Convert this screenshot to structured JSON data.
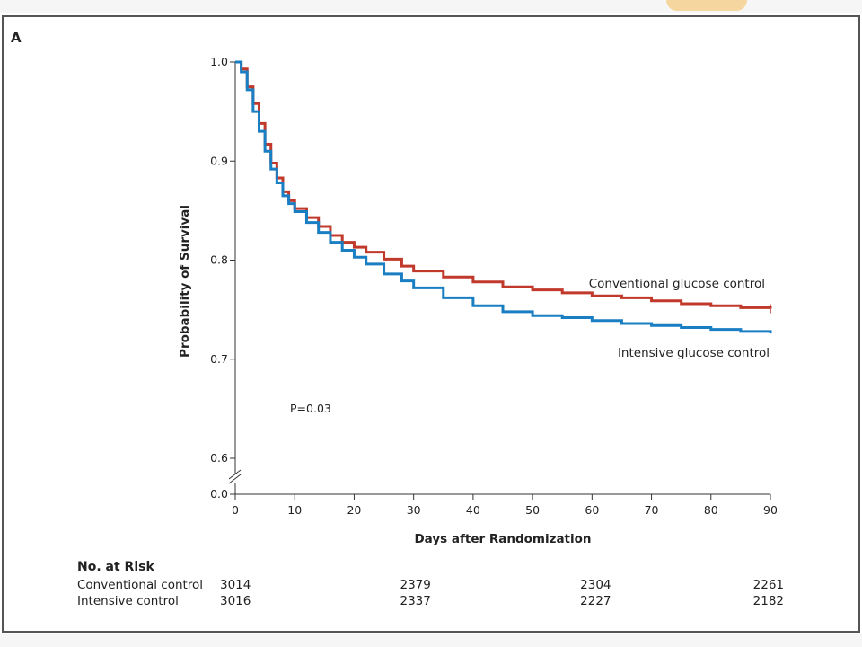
{
  "panel_label": "A",
  "chart_data": {
    "type": "line",
    "step": true,
    "xlabel": "Days after Randomization",
    "ylabel": "Probability of Survival",
    "xlim": [
      0,
      90
    ],
    "ylim": [
      0.6,
      1.0
    ],
    "axis_break": true,
    "x_ticks": [
      0,
      10,
      20,
      30,
      40,
      50,
      60,
      70,
      80,
      90
    ],
    "x_tick_labels": [
      "0",
      "10",
      "20",
      "30",
      "40",
      "50",
      "60",
      "70",
      "80",
      "90"
    ],
    "y_ticks": [
      0.6,
      0.7,
      0.8,
      0.9,
      1.0
    ],
    "y_tick_labels": [
      "0.6",
      "0.7",
      "0.8",
      "0.9",
      "1.0"
    ],
    "y_break_label": "0.0",
    "annotation": "P=0.03",
    "grid": false,
    "series": [
      {
        "name": "Conventional glucose control",
        "color": "#c0392b",
        "x": [
          0,
          1,
          2,
          3,
          4,
          5,
          6,
          7,
          8,
          9,
          10,
          12,
          14,
          16,
          18,
          20,
          22,
          25,
          28,
          30,
          35,
          40,
          45,
          50,
          55,
          60,
          65,
          70,
          75,
          80,
          85,
          90
        ],
        "y": [
          1.0,
          0.993,
          0.975,
          0.958,
          0.938,
          0.917,
          0.898,
          0.883,
          0.869,
          0.86,
          0.852,
          0.843,
          0.834,
          0.825,
          0.818,
          0.813,
          0.808,
          0.801,
          0.794,
          0.789,
          0.783,
          0.778,
          0.773,
          0.77,
          0.767,
          0.764,
          0.762,
          0.759,
          0.756,
          0.754,
          0.752,
          0.751
        ]
      },
      {
        "name": "Intensive glucose control",
        "color": "#1a7ec2",
        "x": [
          0,
          1,
          2,
          3,
          4,
          5,
          6,
          7,
          8,
          9,
          10,
          12,
          14,
          16,
          18,
          20,
          22,
          25,
          28,
          30,
          35,
          40,
          45,
          50,
          55,
          60,
          65,
          70,
          75,
          80,
          85,
          90
        ],
        "y": [
          1.0,
          0.99,
          0.972,
          0.95,
          0.93,
          0.91,
          0.892,
          0.878,
          0.865,
          0.857,
          0.849,
          0.838,
          0.828,
          0.818,
          0.81,
          0.803,
          0.796,
          0.786,
          0.779,
          0.772,
          0.762,
          0.754,
          0.748,
          0.744,
          0.742,
          0.739,
          0.736,
          0.734,
          0.732,
          0.73,
          0.728,
          0.726
        ]
      }
    ]
  },
  "risk_table": {
    "title": "No. at Risk",
    "time_points": [
      0,
      30,
      60,
      90
    ],
    "rows": [
      {
        "label": "Conventional control",
        "values": [
          "3014",
          "2379",
          "2304",
          "2261"
        ]
      },
      {
        "label": "Intensive control",
        "values": [
          "3016",
          "2337",
          "2227",
          "2182"
        ]
      }
    ]
  }
}
